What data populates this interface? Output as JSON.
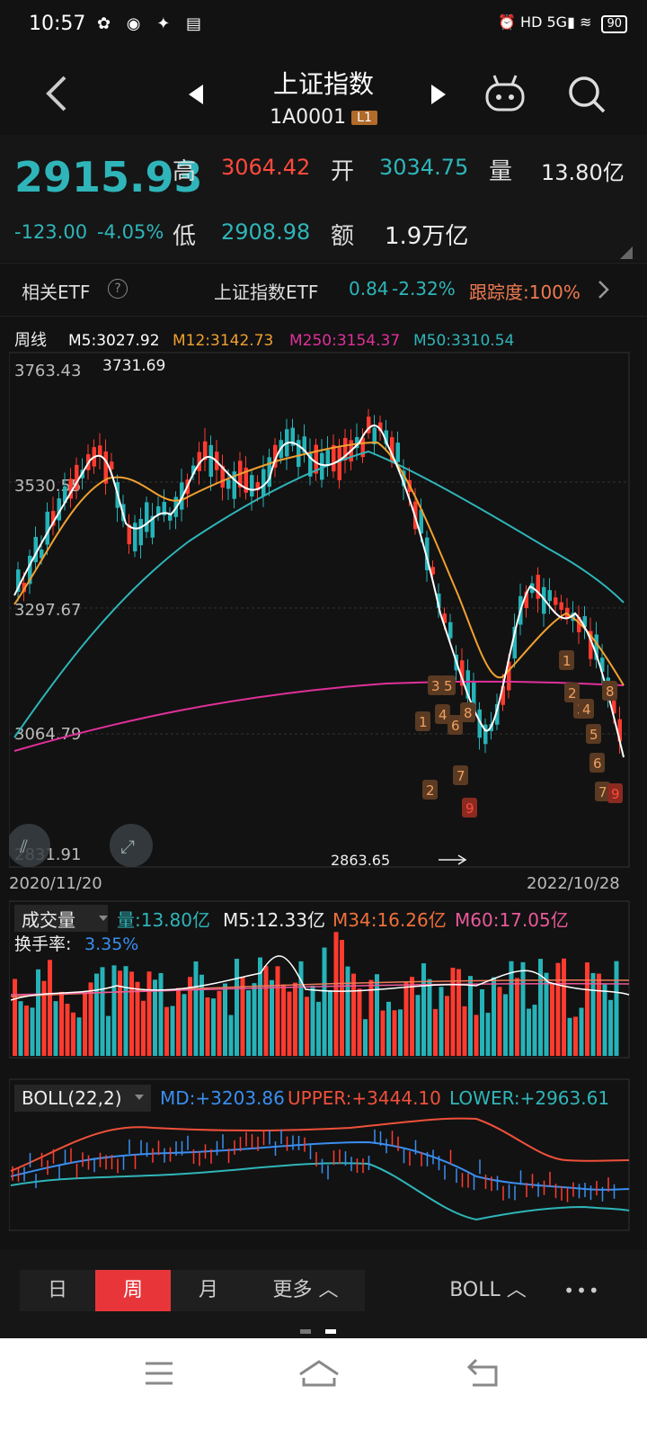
{
  "status": {
    "time": "10:57",
    "network": "5G",
    "battery": "90"
  },
  "header": {
    "title": "上证指数",
    "code": "1A0001",
    "level": "L1"
  },
  "quote": {
    "price": "2915.93",
    "change": "-123.00",
    "change_pct": "-4.05%",
    "high_label": "高",
    "high": "3064.42",
    "open_label": "开",
    "open": "3034.75",
    "volume_label": "量",
    "volume": "13.80亿",
    "low_label": "低",
    "low": "2908.98",
    "amount_label": "额",
    "amount": "1.9万亿"
  },
  "etf": {
    "label": "相关ETF",
    "help": "?",
    "name": "上证指数ETF",
    "price": "0.84",
    "pct": "-2.32%",
    "track": "跟踪度:100%"
  },
  "kline": {
    "period": "周线",
    "ma": [
      {
        "text": "M5:3027.92",
        "color": "#ffffff"
      },
      {
        "text": "M12:3142.73",
        "color": "#f0a030"
      },
      {
        "text": "M250:3154.37",
        "color": "#e0309a"
      },
      {
        "text": "M50:3310.54",
        "color": "#2fb5b9"
      }
    ],
    "y_labels": [
      "3763.43",
      "3530.55",
      "3297.67",
      "3064.79",
      "2831.91"
    ],
    "max_note": "3731.69",
    "min_note": "2863.65",
    "start_date": "2020/11/20",
    "end_date": "2022/10/28",
    "td_labels": [
      "1",
      "2",
      "3",
      "4",
      "5",
      "6",
      "7",
      "8",
      "9",
      "1",
      "2",
      "3",
      "4",
      "5",
      "6",
      "7",
      "8",
      "9"
    ]
  },
  "volume": {
    "title": "成交量",
    "vol": "量:13.80亿",
    "m5": "M5:12.33亿",
    "m34": "M34:16.26亿",
    "m60": "M60:17.05亿",
    "turnover_label": "换手率:",
    "turnover": "3.35%"
  },
  "boll": {
    "title": "BOLL(22,2)",
    "md": "MD:+3203.86",
    "upper": "UPPER:+3444.10",
    "lower": "LOWER:+2963.61"
  },
  "tabs": [
    {
      "label": "日",
      "active": false
    },
    {
      "label": "周",
      "active": true
    },
    {
      "label": "月",
      "active": false
    },
    {
      "label": "更多",
      "active": false
    }
  ],
  "indicator_tab": "BOLL",
  "more_dots": "•••"
}
